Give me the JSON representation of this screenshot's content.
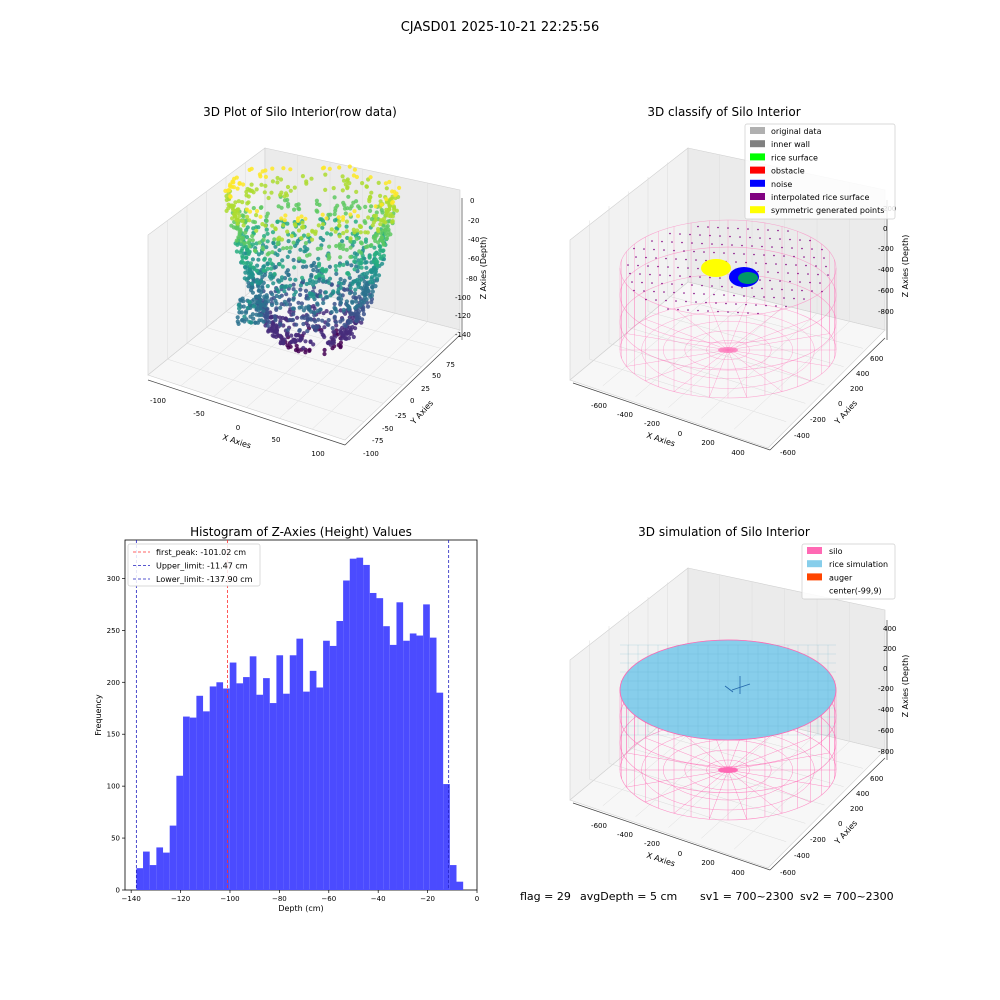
{
  "suptitle": "CJASD01 2025-10-21 22:25:56",
  "colors": {
    "hist_bar": "#4b4bff",
    "peak_line": "#ff3030",
    "limit_line": "#2020c0",
    "silo": "#ff69b4",
    "rice_sim": "#87ceeb",
    "auger": "#ff4500",
    "original": "#b0b0b0",
    "inner_wall": "#808080",
    "rice_surface": "#00ff00",
    "obstacle": "#ff0000",
    "noise": "#0000ff",
    "interp": "#800080",
    "symmetric": "#ffff00"
  },
  "chart_data": [
    {
      "type": "scatter",
      "projection": "3d",
      "title": "3D Plot of Silo Interior(row data)",
      "xlabel": "X Axies",
      "ylabel": "Y Axies",
      "zlabel": "Z Axies (Depth)",
      "xticks": [
        "-100",
        "-50",
        "0",
        "50",
        "100"
      ],
      "yticks": [
        "-100",
        "-75",
        "-50",
        "-25",
        "0",
        "25",
        "50",
        "75"
      ],
      "zticks": [
        "0",
        "-20",
        "-40",
        "-60",
        "-80",
        "-100",
        "-120",
        "-140"
      ],
      "colormap": "viridis"
    },
    {
      "type": "scatter",
      "projection": "3d",
      "title": "3D classify of Silo Interior",
      "xlabel": "X Axies",
      "ylabel": "Y Axies",
      "zlabel": "Z Axies (Depth)",
      "xticks": [
        "-600",
        "-400",
        "-200",
        "0",
        "200",
        "400"
      ],
      "yticks": [
        "-600",
        "-400",
        "-200",
        "0",
        "200",
        "400",
        "600"
      ],
      "zticks": [
        "200",
        "0",
        "-200",
        "-400",
        "-600",
        "-800"
      ],
      "legend": [
        "original data",
        "inner wall",
        "rice surface",
        "obstacle",
        "noise",
        "interpolated rice surface",
        "symmetric generated points"
      ],
      "legend_loc": "upper-right"
    },
    {
      "type": "bar",
      "title": "Histogram of Z-Axies (Height) Values",
      "xlabel": "Depth (cm)",
      "ylabel": "Frequency",
      "xlim": [
        -142.5,
        0
      ],
      "ylim": [
        0,
        337
      ],
      "xticks": [
        -140,
        -120,
        -100,
        -80,
        -60,
        -40,
        -20,
        0
      ],
      "yticks": [
        0,
        50,
        100,
        150,
        200,
        250,
        300
      ],
      "bin_width": 2.7,
      "bin_start": -137.9,
      "values": [
        21,
        37,
        24,
        41,
        36,
        62,
        110,
        167,
        166,
        187,
        172,
        196,
        200,
        194,
        219,
        199,
        205,
        225,
        188,
        204,
        180,
        226,
        189,
        226,
        242,
        191,
        211,
        195,
        240,
        235,
        259,
        298,
        319,
        320,
        313,
        286,
        281,
        254,
        236,
        277,
        240,
        247,
        245,
        275,
        243,
        190,
        102,
        24,
        8
      ],
      "lines": [
        {
          "label": "first_peak: -101.02 cm",
          "x": -101.02,
          "color": "#ff3030"
        },
        {
          "label": "Upper_limit: -11.47 cm",
          "x": -11.47,
          "color": "#2020c0"
        },
        {
          "label": "Lower_limit: -137.90 cm",
          "x": -137.9,
          "color": "#2020c0"
        }
      ],
      "legend_loc": "upper-left"
    },
    {
      "type": "surface",
      "projection": "3d",
      "title": "3D simulation of Silo Interior",
      "xlabel": "X Axies",
      "ylabel": "Y Axies",
      "zlabel": "Z Axies (Depth)",
      "xticks": [
        "-600",
        "-400",
        "-200",
        "0",
        "200",
        "400"
      ],
      "yticks": [
        "-600",
        "-400",
        "-200",
        "0",
        "200",
        "400",
        "600"
      ],
      "zticks": [
        "400",
        "200",
        "0",
        "-200",
        "-400",
        "-600",
        "-800"
      ],
      "legend": [
        "silo",
        "rice simulation",
        "auger",
        "center(-99,9)"
      ],
      "legend_loc": "upper-right"
    }
  ],
  "footer": {
    "flag": "flag = 29",
    "avg_depth": "avgDepth = 5 cm",
    "sv1": "sv1 = 700~2300",
    "sv2": "sv2 = 700~2300"
  }
}
